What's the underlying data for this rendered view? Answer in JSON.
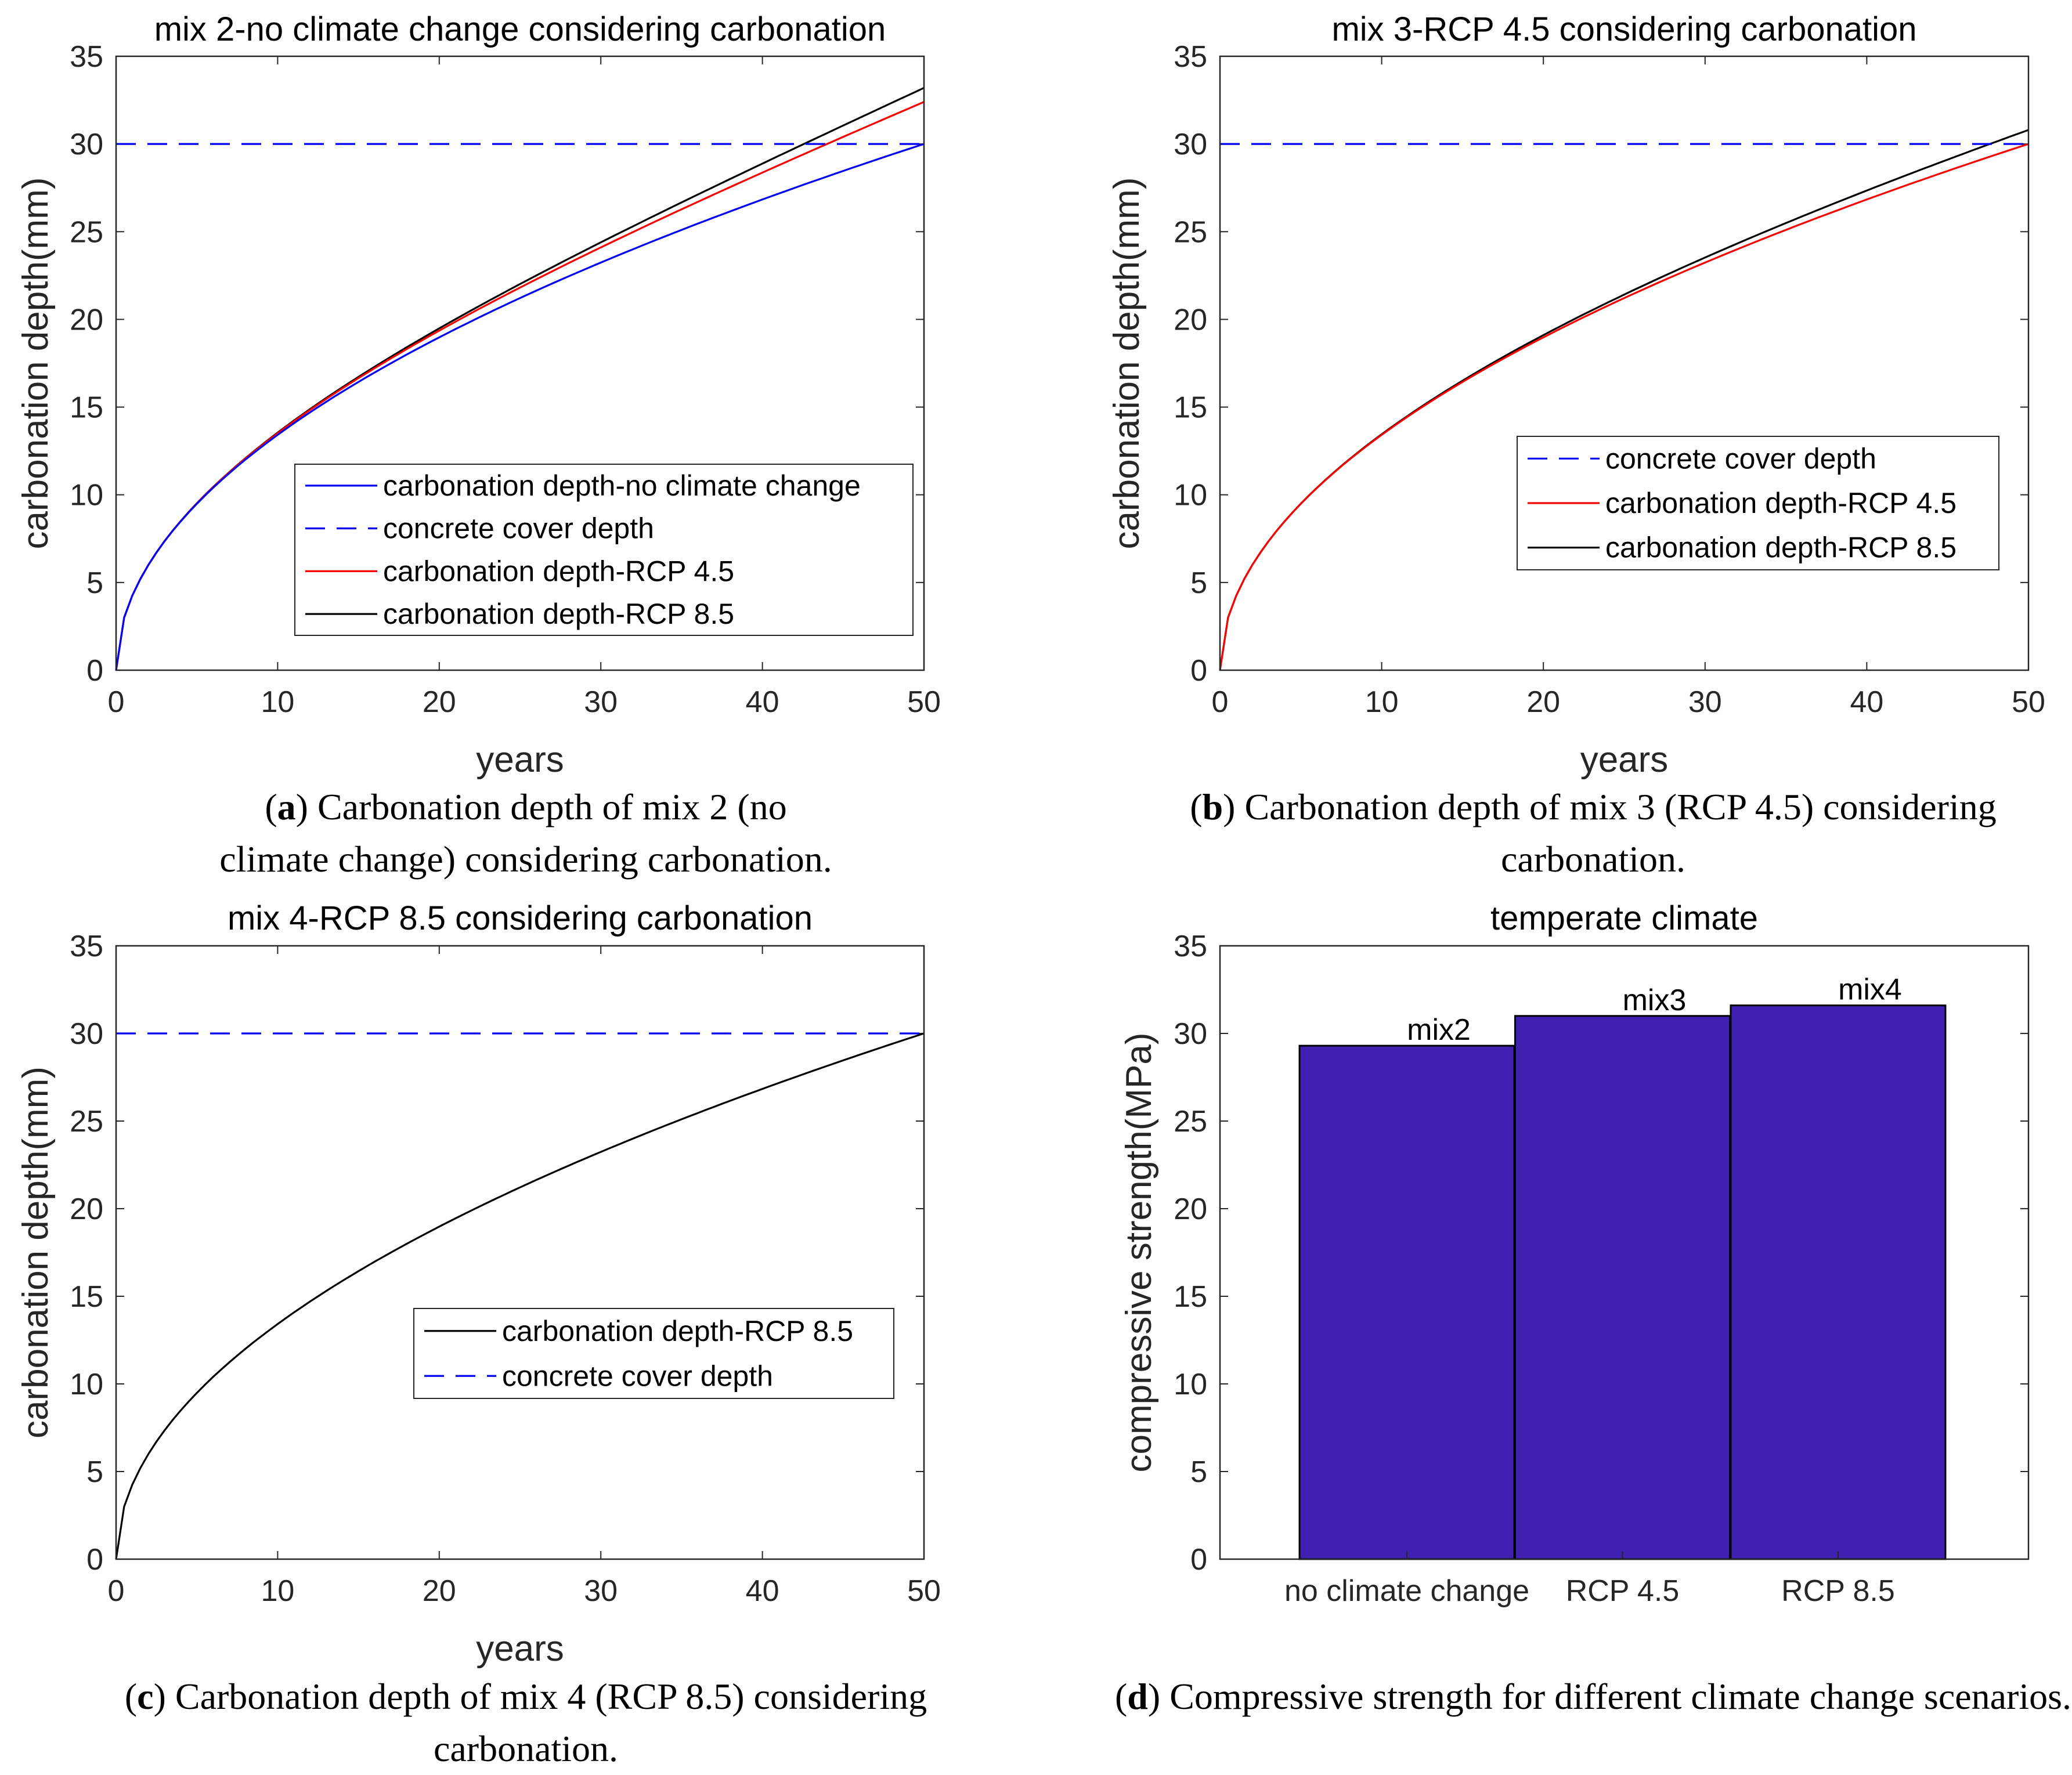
{
  "chart_data": [
    {
      "id": "a",
      "type": "line",
      "title": "mix 2-no climate change considering carbonation",
      "xlabel": "years",
      "ylabel": "carbonation depth(mm)",
      "xlim": [
        0,
        50
      ],
      "ylim": [
        0,
        35
      ],
      "xticks": [
        0,
        10,
        20,
        30,
        40,
        50
      ],
      "yticks": [
        0,
        5,
        10,
        15,
        20,
        25,
        30,
        35
      ],
      "legend_position": "lower-right",
      "series": [
        {
          "name": "carbonation depth-no climate change",
          "color": "#0000ff",
          "dash": "solid",
          "k": 4.243
        },
        {
          "name": "concrete cover depth",
          "color": "#0000ff",
          "dash": "dashed",
          "constant": 30
        },
        {
          "name": "carbonation depth-RCP 4.5",
          "color": "#ff0000",
          "dash": "solid",
          "k": 4.243,
          "end": 32.4
        },
        {
          "name": "carbonation depth-RCP 8.5",
          "color": "#000000",
          "dash": "solid",
          "k": 4.243,
          "end": 33.2
        }
      ],
      "caption_letter": "a",
      "caption_text": "Carbonation depth of mix 2 (no climate change) considering carbonation."
    },
    {
      "id": "b",
      "type": "line",
      "title": "mix 3-RCP 4.5 considering carbonation",
      "xlabel": "years",
      "ylabel": "carbonation depth(mm)",
      "xlim": [
        0,
        50
      ],
      "ylim": [
        0,
        35
      ],
      "xticks": [
        0,
        10,
        20,
        30,
        40,
        50
      ],
      "yticks": [
        0,
        5,
        10,
        15,
        20,
        25,
        30,
        35
      ],
      "legend_position": "center-right",
      "series": [
        {
          "name": "concrete cover depth",
          "color": "#0000ff",
          "dash": "dashed",
          "constant": 30
        },
        {
          "name": "carbonation depth-RCP 4.5",
          "color": "#ff0000",
          "dash": "solid",
          "k": 4.243
        },
        {
          "name": "carbonation depth-RCP 8.5",
          "color": "#000000",
          "dash": "solid",
          "k": 4.243,
          "end": 30.8
        }
      ],
      "caption_letter": "b",
      "caption_text": "Carbonation depth of mix 3 (RCP 4.5) considering carbonation."
    },
    {
      "id": "c",
      "type": "line",
      "title": "mix 4-RCP 8.5 considering carbonation",
      "xlabel": "years",
      "ylabel": "carbonation depth(mm)",
      "xlim": [
        0,
        50
      ],
      "ylim": [
        0,
        35
      ],
      "xticks": [
        0,
        10,
        20,
        30,
        40,
        50
      ],
      "yticks": [
        0,
        5,
        10,
        15,
        20,
        25,
        30,
        35
      ],
      "legend_position": "lower-right",
      "series": [
        {
          "name": "carbonation depth-RCP 8.5",
          "color": "#000000",
          "dash": "solid",
          "k": 4.243
        },
        {
          "name": "concrete cover depth",
          "color": "#0000ff",
          "dash": "dashed",
          "constant": 30
        }
      ],
      "caption_letter": "c",
      "caption_text": "Carbonation depth of mix 4 (RCP 8.5) considering carbonation."
    },
    {
      "id": "d",
      "type": "bar",
      "title": "temperate climate",
      "xlabel": "",
      "ylabel": "compressive strength(MPa)",
      "ylim": [
        0,
        35
      ],
      "yticks": [
        0,
        5,
        10,
        15,
        20,
        25,
        30,
        35
      ],
      "categories": [
        "no climate change",
        "RCP 4.5",
        "RCP 8.5"
      ],
      "values": [
        29.3,
        31.0,
        31.6
      ],
      "bar_labels": [
        "mix2",
        "mix3",
        "mix4"
      ],
      "bar_color": "#4020b0",
      "caption_letter": "d",
      "caption_text": "Compressive strength for different climate change scenarios."
    }
  ]
}
